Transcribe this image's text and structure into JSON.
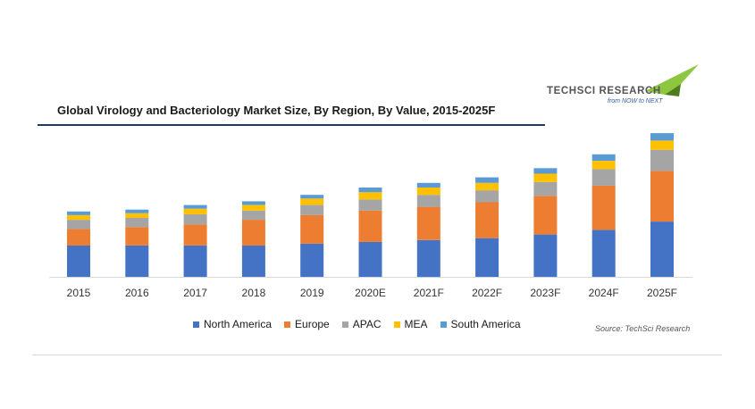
{
  "header": {
    "title": "Global Virology and Bacteriology Market Size, By Region, By Value, 2015-2025F"
  },
  "logo": {
    "name": "TECHSCI RESEARCH",
    "tagline": "from NOW to NEXT"
  },
  "footer": {
    "source": "Source: TechSci Research"
  },
  "colors": {
    "north_america": "#4472c4",
    "europe": "#ed7d31",
    "apac": "#a5a5a5",
    "mea": "#ffc000",
    "south_america": "#5b9bd5"
  },
  "chart_data": {
    "type": "bar",
    "stacked": true,
    "title": "Global Virology and Bacteriology Market Size, By Region, By Value, 2015-2025F",
    "xlabel": "",
    "ylabel": "",
    "ylim": [
      0,
      160
    ],
    "grid": false,
    "legend_position": "bottom",
    "categories": [
      "2015",
      "2016",
      "2017",
      "2018",
      "2019",
      "2020E",
      "2021F",
      "2022F",
      "2023F",
      "2024F",
      "2025F"
    ],
    "series": [
      {
        "name": "North America",
        "color": "#4472c4",
        "values": [
          34,
          34,
          34,
          34,
          36,
          38,
          40,
          42,
          46,
          51,
          60
        ]
      },
      {
        "name": "Europe",
        "color": "#ed7d31",
        "values": [
          18,
          20,
          23,
          28,
          31,
          34,
          36,
          39,
          42,
          48,
          55
        ]
      },
      {
        "name": "APAC",
        "color": "#a5a5a5",
        "values": [
          10,
          10,
          11,
          10,
          11,
          12,
          13,
          13,
          15,
          18,
          23
        ]
      },
      {
        "name": "MEA",
        "color": "#ffc000",
        "values": [
          5,
          5,
          6,
          6,
          7,
          8,
          8,
          8,
          9,
          9,
          10
        ]
      },
      {
        "name": "South America",
        "color": "#5b9bd5",
        "values": [
          4,
          4,
          4,
          4,
          4,
          5,
          5,
          6,
          6,
          7,
          8
        ]
      }
    ]
  }
}
